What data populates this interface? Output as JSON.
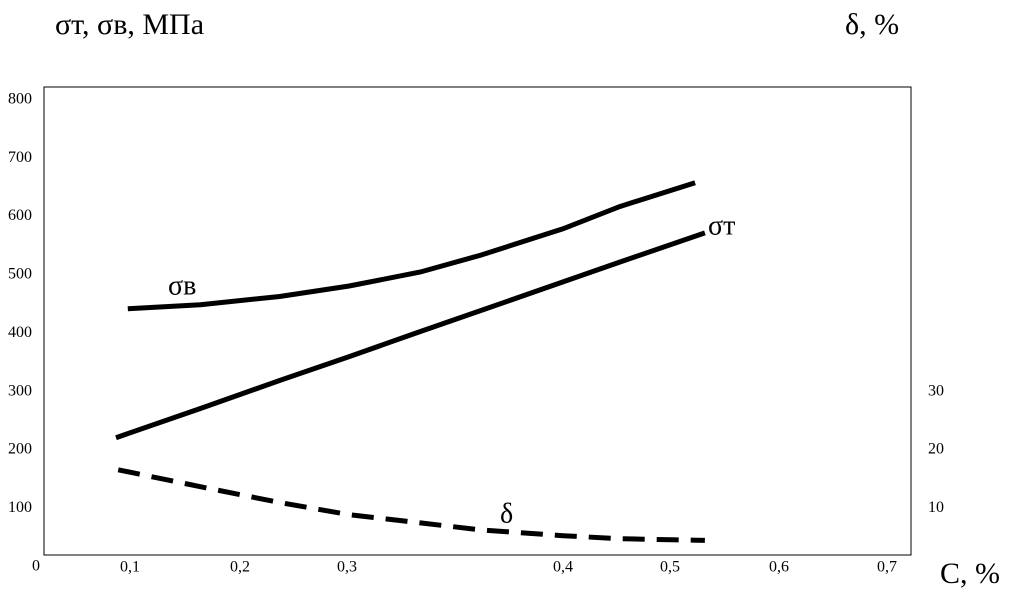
{
  "chart_data": {
    "type": "line",
    "y_title": "σт, σв, МПа",
    "y2_title": "δ, %",
    "x_title": "C, %",
    "xlim": [
      0.02,
      0.72
    ],
    "xticks": [
      {
        "value": 0.1,
        "label": "0,1"
      },
      {
        "value": 0.2,
        "label": "0,2"
      },
      {
        "value": 0.3,
        "label": "0,3"
      },
      {
        "value": 0.4,
        "label": "0,4"
      },
      {
        "value": 0.5,
        "label": "0,5"
      },
      {
        "value": 0.6,
        "label": "0,6"
      },
      {
        "value": 0.7,
        "label": "0,7"
      }
    ],
    "ylim": [
      20,
      822
    ],
    "yticks": [
      0,
      100,
      200,
      300,
      400,
      500,
      600,
      700,
      800
    ],
    "y2lim": [
      2,
      82.2
    ],
    "y2ticks": [
      10,
      20,
      30
    ],
    "series": [
      {
        "name": "σв",
        "color": "#000000",
        "x": [
          0.098,
          0.164,
          0.237,
          0.301,
          0.334,
          0.362,
          0.4,
          0.453,
          0.523
        ],
        "values": [
          442,
          449,
          463,
          481,
          505,
          534,
          579,
          617,
          658
        ]
      },
      {
        "name": "σт",
        "color": "#000000",
        "x": [
          0.087,
          0.164,
          0.237,
          0.301,
          0.334,
          0.362,
          0.4,
          0.453,
          0.532
        ],
        "values": [
          221,
          271,
          319,
          360,
          403,
          439,
          488,
          522,
          572
        ]
      },
      {
        "name": "δ",
        "color": "#000000",
        "axis": "y2",
        "dashed": true,
        "x": [
          0.089,
          0.164,
          0.237,
          0.301,
          0.334,
          0.362,
          0.4,
          0.453,
          0.532
        ],
        "values": [
          16.6,
          13.7,
          11.0,
          8.9,
          7.5,
          6.3,
          5.3,
          4.8,
          4.5
        ]
      }
    ]
  }
}
